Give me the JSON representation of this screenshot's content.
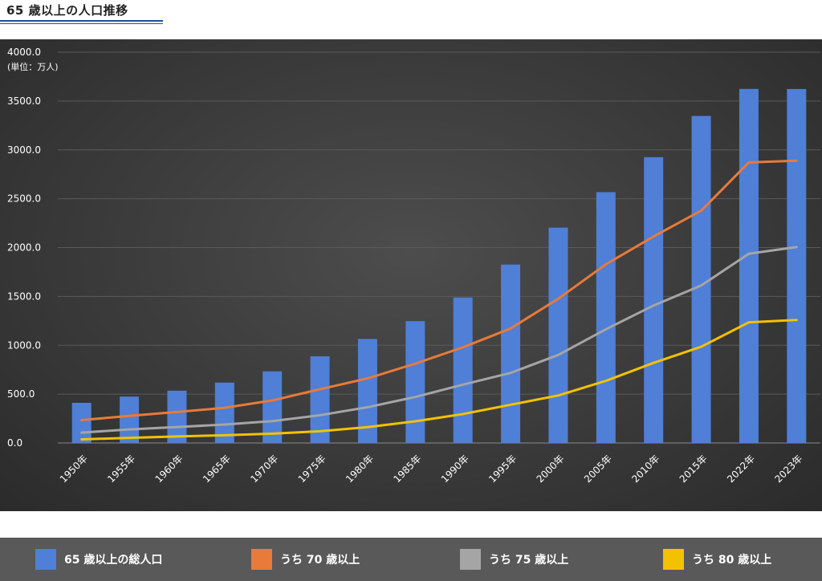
{
  "page": {
    "title": "65 歳以上の人口推移"
  },
  "chart_data": {
    "type": "bar",
    "unit_label": "(単位：万人)",
    "ylim": [
      0,
      4000
    ],
    "ytick_labels": [
      "0.0",
      "500.0",
      "1000.0",
      "1500.0",
      "2000.0",
      "2500.0",
      "3000.0",
      "3500.0",
      "4000.0"
    ],
    "grid": true,
    "legend_position": "bottom",
    "categories": [
      "1950年",
      "1955年",
      "1960年",
      "1965年",
      "1970年",
      "1975年",
      "1980年",
      "1985年",
      "1990年",
      "1995年",
      "2000年",
      "2005年",
      "2010年",
      "2015年",
      "2022年",
      "2023年"
    ],
    "series": [
      {
        "name": "65 歳以上の総人口",
        "kind": "bar",
        "color": "#4f7fd6",
        "values": [
          411,
          475,
          535,
          618,
          733,
          887,
          1065,
          1247,
          1489,
          1826,
          2204,
          2567,
          2925,
          3347,
          3624,
          3623
        ]
      },
      {
        "name": "うち 70 歳以上",
        "kind": "line",
        "color": "#e87a3a",
        "values": [
          234,
          277,
          317,
          360,
          435,
          550,
          661,
          812,
          979,
          1172,
          1476,
          1829,
          2113,
          2378,
          2872,
          2889
        ]
      },
      {
        "name": "うち 75 歳以上",
        "kind": "line",
        "color": "#a5a5a5",
        "values": [
          106,
          139,
          163,
          189,
          224,
          284,
          366,
          471,
          597,
          717,
          901,
          1164,
          1407,
          1612,
          1937,
          2005
        ]
      },
      {
        "name": "うち 80 歳以上",
        "kind": "line",
        "color": "#f2c200",
        "values": [
          37,
          52,
          67,
          79,
          95,
          120,
          162,
          222,
          296,
          391,
          486,
          636,
          820,
          985,
          1235,
          1259
        ]
      }
    ]
  }
}
